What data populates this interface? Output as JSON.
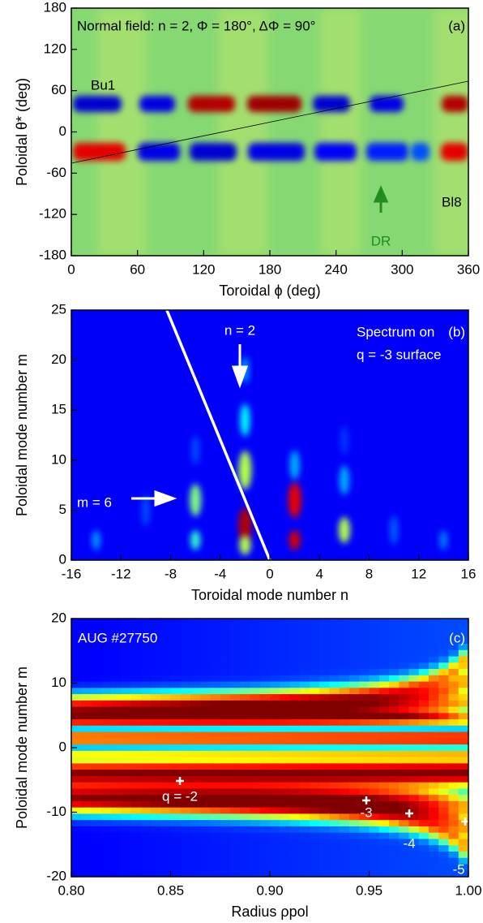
{
  "chart_data": [
    {
      "type": "heatmap",
      "xlabel": "Toroidal ϕ (deg)",
      "ylabel": "Poloidal θ* (deg)",
      "xlim": [
        0,
        360
      ],
      "ylim": [
        -180,
        180
      ],
      "xticks": [
        0,
        60,
        120,
        180,
        240,
        300,
        360
      ],
      "yticks": [
        -180,
        -120,
        -60,
        0,
        60,
        120,
        180
      ],
      "annotations": [
        "Normal field: n = 2, Φ = 180°, ΔΦ = 90°",
        "(a)",
        "Bu1",
        "Bl8",
        "DR"
      ]
    },
    {
      "type": "heatmap",
      "xlabel": "Toroidal mode number n",
      "ylabel": "Poloidal mode number m",
      "xlim": [
        -16,
        16
      ],
      "ylim": [
        0,
        25
      ],
      "xticks": [
        -16,
        -12,
        -8,
        -4,
        0,
        4,
        8,
        12,
        16
      ],
      "yticks": [
        0,
        5,
        10,
        15,
        20,
        25
      ],
      "annotations": [
        "n = 2",
        "Spectrum on",
        "q = -3 surface",
        "(b)",
        "m = 6"
      ]
    },
    {
      "type": "heatmap",
      "xlabel": "Radius ρpol",
      "ylabel": "Poloidal mode number m",
      "xlim": [
        0.8,
        1.0
      ],
      "ylim": [
        -20,
        20
      ],
      "xticks": [
        {
          "value": 0.8,
          "label": "0.80"
        },
        0.85,
        {
          "value": 0.9,
          "label": "0.90"
        },
        0.95,
        {
          "value": 1.0,
          "label": "1.00"
        }
      ],
      "yticks": [
        -20,
        -10,
        0,
        10,
        20
      ],
      "annotations": [
        "AUG #27750",
        "(c)",
        "q = -2",
        "-3",
        "-4",
        "-5"
      ]
    }
  ]
}
